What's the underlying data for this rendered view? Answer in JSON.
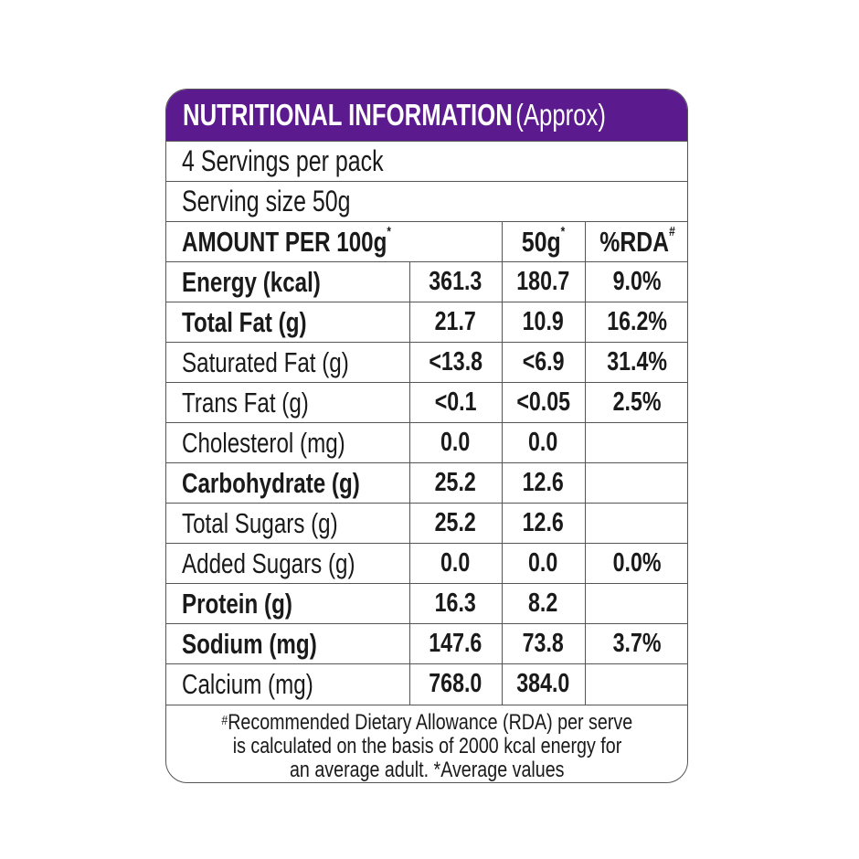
{
  "colors": {
    "header_bg": "#5b1a8e",
    "header_text": "#ffffff",
    "border": "#555555"
  },
  "title": {
    "main": "NUTRITIONAL INFORMATION",
    "suffix": "(Approx)"
  },
  "servings_per_pack": "4 Servings per pack",
  "serving_size": "Serving size 50g",
  "columns": {
    "amount": "AMOUNT PER  100g",
    "amount_mark": "*",
    "per_serve": "50g",
    "per_serve_mark": "*",
    "rda": "%RDA",
    "rda_mark": "#"
  },
  "rows": [
    {
      "name": "Energy (kcal)",
      "bold": true,
      "per100": "361.3",
      "per50": "180.7",
      "rda": "9.0%"
    },
    {
      "name": "Total Fat (g)",
      "bold": true,
      "per100": "21.7",
      "per50": "10.9",
      "rda": "16.2%"
    },
    {
      "name": "Saturated Fat (g)",
      "bold": false,
      "per100": "<13.8",
      "per50": "<6.9",
      "rda": "31.4%"
    },
    {
      "name": "Trans Fat (g)",
      "bold": false,
      "per100": "<0.1",
      "per50": "<0.05",
      "rda": "2.5%"
    },
    {
      "name": "Cholesterol (mg)",
      "bold": false,
      "per100": "0.0",
      "per50": "0.0",
      "rda": ""
    },
    {
      "name": "Carbohydrate (g)",
      "bold": true,
      "per100": "25.2",
      "per50": "12.6",
      "rda": ""
    },
    {
      "name": "Total Sugars (g)",
      "bold": false,
      "per100": "25.2",
      "per50": "12.6",
      "rda": ""
    },
    {
      "name": "Added Sugars (g)",
      "bold": false,
      "per100": "0.0",
      "per50": "0.0",
      "rda": "0.0%"
    },
    {
      "name": "Protein (g)",
      "bold": true,
      "per100": "16.3",
      "per50": "8.2",
      "rda": ""
    },
    {
      "name": "Sodium (mg)",
      "bold": true,
      "per100": "147.6",
      "per50": "73.8",
      "rda": "3.7%"
    },
    {
      "name": "Calcium (mg)",
      "bold": false,
      "per100": "768.0",
      "per50": "384.0",
      "rda": ""
    }
  ],
  "footnote": {
    "mark": "#",
    "line1": "Recommended Dietary Allowance (RDA) per serve",
    "line2": "is calculated on the basis of 2000 kcal energy for",
    "line3": "an average adult.   *Average values"
  }
}
